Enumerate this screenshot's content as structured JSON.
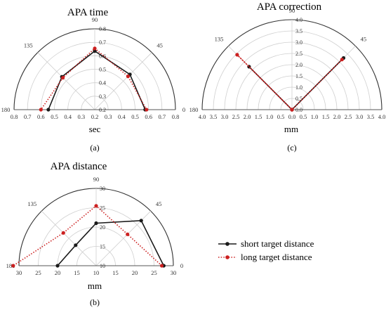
{
  "chart_data": [
    {
      "type": "polar-line",
      "title": "APA time",
      "xlabel": "sec",
      "panel_label": "(a)",
      "radial_min": 0.2,
      "radial_max": 0.8,
      "radial_ticks": [
        0.2,
        0.3,
        0.4,
        0.5,
        0.6,
        0.7,
        0.8
      ],
      "axis_ticks_left": [
        "0.8",
        "0.7",
        "0.6",
        "0.5",
        "0.4",
        "0.3",
        "0.2"
      ],
      "axis_ticks_right": [
        "0.3",
        "0.4",
        "0.5",
        "0.6",
        "0.7",
        "0.8"
      ],
      "angle_labels": [
        "0",
        "45",
        "90",
        "135",
        "180"
      ],
      "angles": [
        0,
        45,
        90,
        135,
        180
      ],
      "series": [
        {
          "key": "short",
          "values": [
            0.575,
            0.57,
            0.635,
            0.545,
            0.545
          ]
        },
        {
          "key": "long",
          "values": [
            0.585,
            0.55,
            0.655,
            0.535,
            0.6
          ]
        }
      ]
    },
    {
      "type": "polar-line",
      "title": "APA correction",
      "xlabel": "mm",
      "panel_label": "(c)",
      "radial_min": 0,
      "radial_max": 4,
      "radial_ticks": [
        0.5,
        1.0,
        1.5,
        2.0,
        2.5,
        3.0,
        3.5,
        4.0
      ],
      "axis_ticks_left": [
        "4.0",
        "3.5",
        "3.0",
        "2.5",
        "2.0",
        "1.5",
        "1.0",
        "0.5",
        "0.0"
      ],
      "axis_ticks_right": [
        "0.5",
        "1.0",
        "1.5",
        "2.0",
        "2.5",
        "3.0",
        "3.5",
        "4.0"
      ],
      "axis_ticks_vertical": [
        "0.0",
        "0.5",
        "1.0",
        "1.5",
        "2.0",
        "2.5",
        "3.0",
        "3.5",
        "4.0"
      ],
      "angle_labels": [
        "0",
        "45",
        "90",
        "135",
        "180"
      ],
      "angles": [
        0,
        45,
        90,
        135,
        180
      ],
      "series": [
        {
          "key": "short",
          "values": [
            0.0,
            3.25,
            0.0,
            2.7,
            0.0
          ]
        },
        {
          "key": "long",
          "values": [
            0.0,
            3.15,
            0.0,
            3.45,
            0.0
          ]
        }
      ]
    },
    {
      "type": "polar-line",
      "title": "APA distance",
      "xlabel": "mm",
      "panel_label": "(b)",
      "radial_min": 10,
      "radial_max": 30,
      "radial_ticks": [
        10,
        15,
        20,
        25,
        30
      ],
      "axis_ticks_left": [
        "30",
        "25",
        "20",
        "15",
        "10"
      ],
      "axis_ticks_right": [
        "15",
        "20",
        "25",
        "30"
      ],
      "axis_ticks_vertical": [
        "10",
        "15",
        "20",
        "25",
        "30"
      ],
      "angle_labels": [
        "0",
        "45",
        "90",
        "135",
        "180"
      ],
      "angles": [
        0,
        45,
        90,
        135,
        180
      ],
      "series": [
        {
          "key": "short",
          "values": [
            27.5,
            26.5,
            21,
            17.5,
            20
          ]
        },
        {
          "key": "long",
          "values": [
            27,
            21.5,
            25.5,
            22,
            31.5
          ]
        }
      ]
    }
  ],
  "legend": {
    "placement": "right",
    "entries": [
      {
        "key": "short",
        "label": "short target distance",
        "color": "#1a1a1a",
        "style": "solid"
      },
      {
        "key": "long",
        "label": "long target distance",
        "color": "#cc2020",
        "style": "dotted"
      }
    ]
  }
}
